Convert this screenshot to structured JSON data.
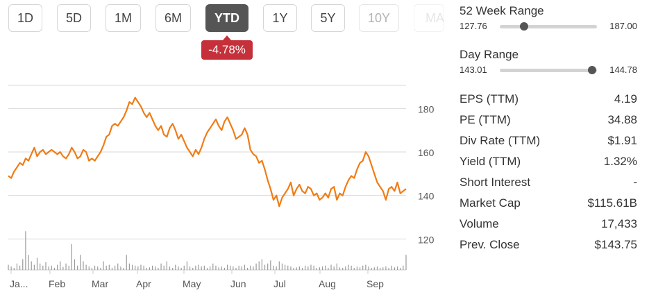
{
  "range_buttons": [
    {
      "label": "1D",
      "state": "normal"
    },
    {
      "label": "5D",
      "state": "normal"
    },
    {
      "label": "1M",
      "state": "normal"
    },
    {
      "label": "6M",
      "state": "normal"
    },
    {
      "label": "YTD",
      "state": "active"
    },
    {
      "label": "1Y",
      "state": "normal"
    },
    {
      "label": "5Y",
      "state": "normal"
    },
    {
      "label": "10Y",
      "state": "faded"
    },
    {
      "label": "MAX",
      "state": "ghost"
    }
  ],
  "change_badge": "-4.78%",
  "colors": {
    "price_line": "#f07c14",
    "badge_bg": "#c6303a",
    "active_button": "#555555",
    "grid": "#d9d9d9",
    "volume": "#9a9a9a"
  },
  "stats": {
    "week52": {
      "title": "52 Week Range",
      "low": "127.76",
      "high": "187.00",
      "position": 0.25
    },
    "day": {
      "title": "Day Range",
      "low": "143.01",
      "high": "144.78",
      "position": 0.95
    },
    "rows": [
      {
        "label": "EPS (TTM)",
        "value": "4.19"
      },
      {
        "label": "PE (TTM)",
        "value": "34.88"
      },
      {
        "label": "Div Rate (TTM)",
        "value": "$1.91"
      },
      {
        "label": "Yield (TTM)",
        "value": "1.32%"
      },
      {
        "label": "Short Interest",
        "value": "-"
      },
      {
        "label": "Market Cap",
        "value": "$115.61B"
      },
      {
        "label": "Volume",
        "value": "17,433"
      },
      {
        "label": "Prev. Close",
        "value": "$143.75"
      }
    ]
  },
  "chart_data": {
    "type": "line",
    "ylim": [
      115,
      198
    ],
    "yticks": [
      120,
      140,
      160,
      180
    ],
    "x_month_labels": [
      "Ja...",
      "Feb",
      "Mar",
      "Apr",
      "May",
      "Jun",
      "Jul",
      "Aug",
      "Sep"
    ],
    "grid": true,
    "price": [
      149,
      148,
      151,
      153,
      155,
      154,
      157,
      156,
      159,
      162,
      158,
      160,
      161,
      159,
      160,
      161,
      160,
      159,
      160,
      158,
      157,
      159,
      162,
      160,
      157,
      158,
      161,
      160,
      156,
      157,
      156,
      158,
      160,
      163,
      167,
      168,
      172,
      173,
      172,
      174,
      176,
      179,
      183,
      182,
      185,
      183,
      181,
      178,
      176,
      178,
      175,
      172,
      170,
      172,
      168,
      167,
      171,
      173,
      170,
      166,
      168,
      165,
      162,
      160,
      158,
      161,
      159,
      162,
      166,
      169,
      171,
      173,
      175,
      172,
      170,
      174,
      176,
      173,
      170,
      166,
      167,
      168,
      171,
      168,
      161,
      159,
      158,
      155,
      156,
      152,
      147,
      143,
      138,
      140,
      135,
      139,
      141,
      143,
      146,
      140,
      143,
      145,
      142,
      141,
      144,
      143,
      140,
      141,
      138,
      139,
      141,
      139,
      143,
      144,
      138,
      141,
      140,
      144,
      147,
      149,
      148,
      152,
      155,
      156,
      160,
      158,
      154,
      150,
      146,
      144,
      142,
      138,
      143,
      144,
      142,
      146,
      141,
      142,
      143
    ],
    "volume": [
      0.12,
      0.08,
      0.05,
      0.15,
      0.1,
      0.25,
      0.9,
      0.35,
      0.2,
      0.12,
      0.28,
      0.15,
      0.1,
      0.18,
      0.08,
      0.1,
      0.05,
      0.12,
      0.2,
      0.07,
      0.15,
      0.1,
      0.6,
      0.25,
      0.1,
      0.35,
      0.2,
      0.12,
      0.08,
      0.05,
      0.1,
      0.08,
      0.05,
      0.2,
      0.1,
      0.12,
      0.05,
      0.1,
      0.15,
      0.08,
      0.05,
      0.35,
      0.15,
      0.12,
      0.1,
      0.08,
      0.12,
      0.1,
      0.05,
      0.06,
      0.1,
      0.08,
      0.05,
      0.15,
      0.1,
      0.2,
      0.08,
      0.05,
      0.12,
      0.08,
      0.05,
      0.1,
      0.2,
      0.08,
      0.05,
      0.1,
      0.12,
      0.08,
      0.1,
      0.05,
      0.08,
      0.15,
      0.1,
      0.06,
      0.08,
      0.05,
      0.12,
      0.1,
      0.08,
      0.05,
      0.1,
      0.08,
      0.12,
      0.05,
      0.1,
      0.08,
      0.15,
      0.2,
      0.25,
      0.12,
      0.15,
      0.22,
      0.1,
      0.08,
      0.2,
      0.15,
      0.12,
      0.1,
      0.08,
      0.05,
      0.06,
      0.08,
      0.05,
      0.1,
      0.08,
      0.12,
      0.1,
      0.05,
      0.06,
      0.08,
      0.1,
      0.05,
      0.12,
      0.08,
      0.15,
      0.06,
      0.05,
      0.08,
      0.12,
      0.1,
      0.05,
      0.08,
      0.06,
      0.1,
      0.12,
      0.08,
      0.05,
      0.06,
      0.08,
      0.05,
      0.06,
      0.08,
      0.05,
      0.1,
      0.06,
      0.08,
      0.05,
      0.1,
      0.35
    ]
  }
}
